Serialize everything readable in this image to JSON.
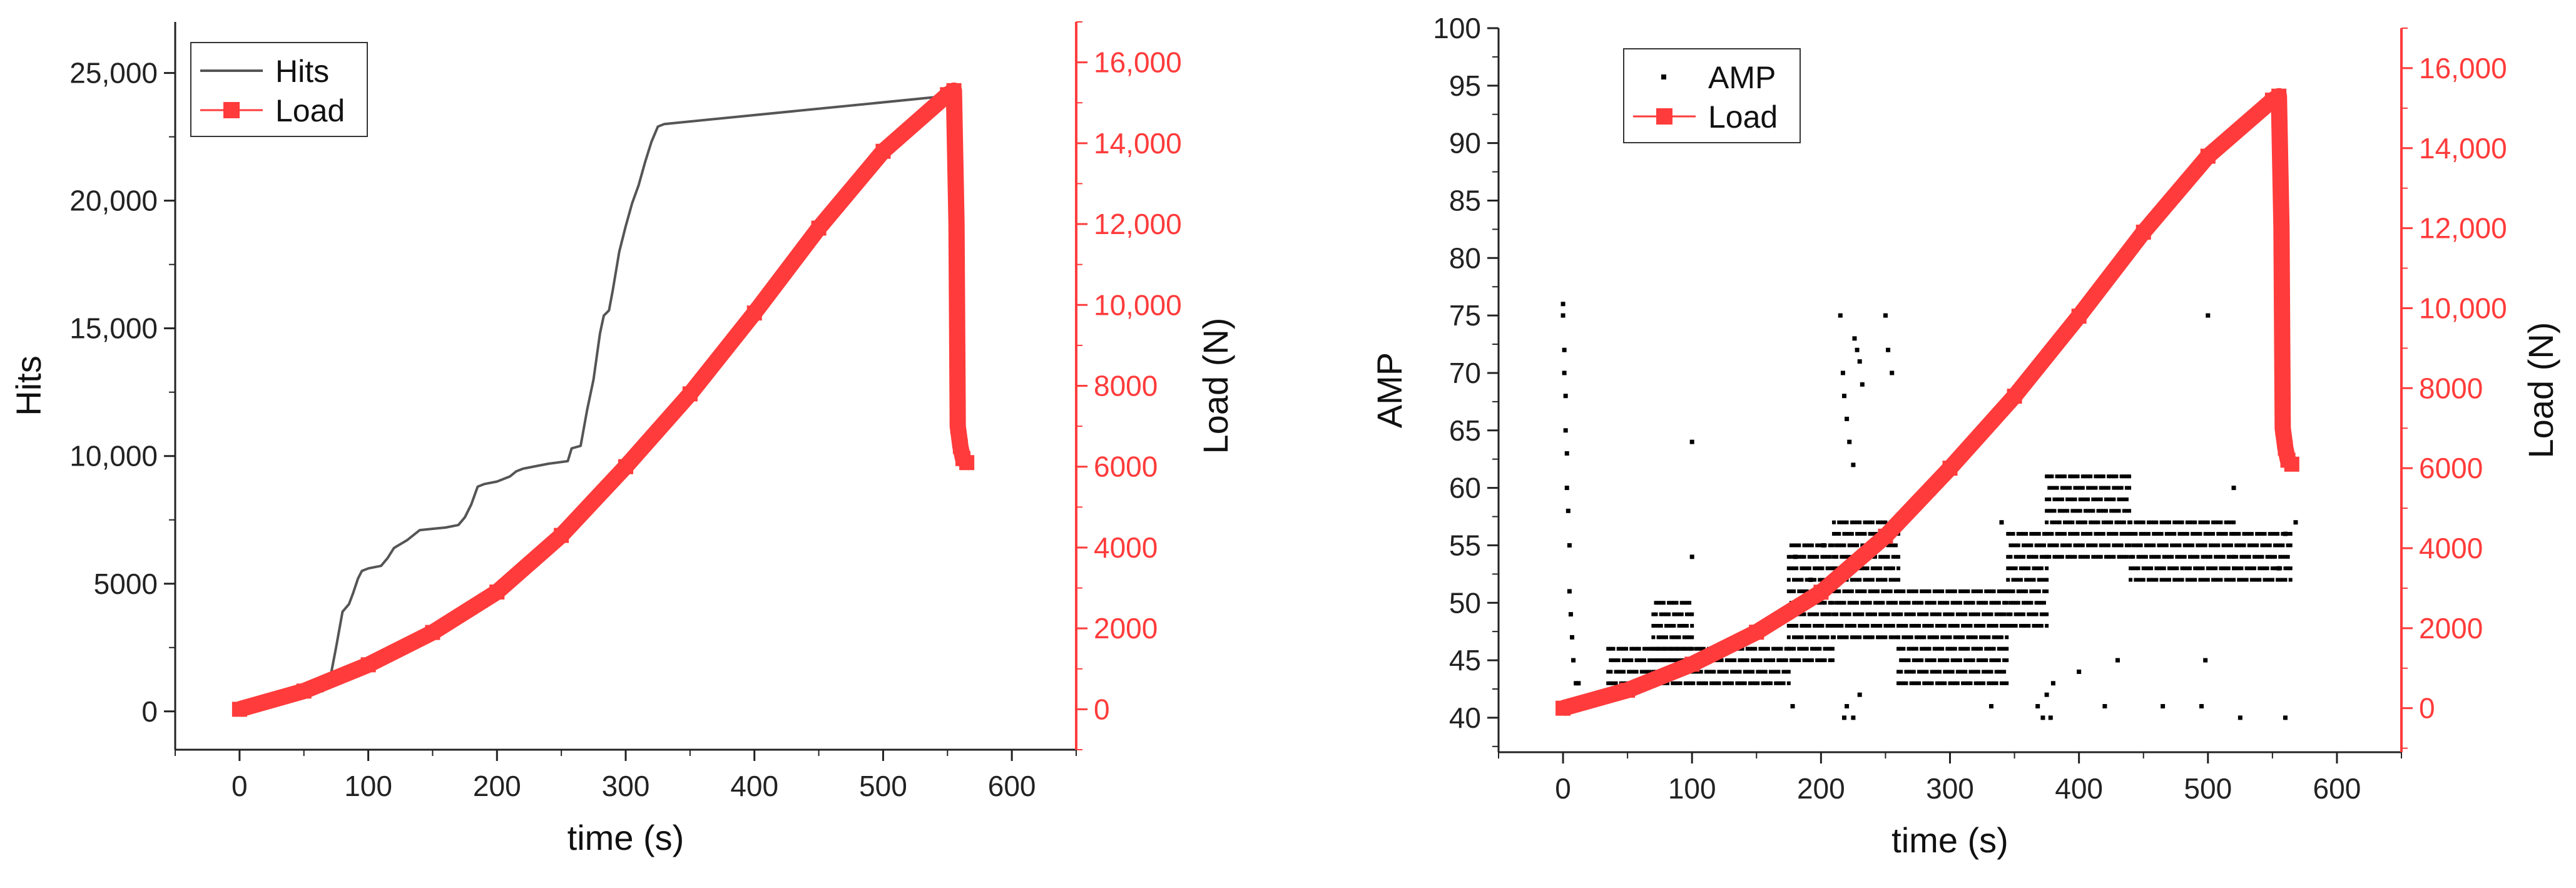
{
  "colors": {
    "hits": "#555555",
    "load": "#ff3b3b",
    "amp": "#000000",
    "axis": "#222222"
  },
  "chart_data": [
    {
      "type": "line",
      "title": "",
      "xlabel": "time (s)",
      "ylabel": "Hits",
      "ylabel_right": "Load (N)",
      "xlim": [
        -50,
        650
      ],
      "ylim": [
        -1500,
        27000
      ],
      "ylim_right": [
        -1000,
        17000
      ],
      "xticks": [
        0,
        100,
        200,
        300,
        400,
        500,
        600
      ],
      "xtick_labels": [
        "0",
        "100",
        "200",
        "300",
        "400",
        "500",
        "600"
      ],
      "yticks": [
        0,
        5000,
        10000,
        15000,
        20000,
        25000
      ],
      "ytick_labels": [
        "0",
        "5000",
        "10,000",
        "15,000",
        "20,000",
        "25,000"
      ],
      "yticks_right": [
        0,
        2000,
        4000,
        6000,
        8000,
        10000,
        12000,
        14000,
        16000
      ],
      "ytick_labels_right": [
        "0",
        "2000",
        "4000",
        "6000",
        "8000",
        "10,000",
        "12,000",
        "14,000",
        "16,000"
      ],
      "legend": [
        "Hits",
        "Load"
      ],
      "legend_position": "top-left",
      "series": [
        {
          "name": "Hits",
          "axis": "left",
          "x": [
            0,
            65,
            70,
            75,
            80,
            85,
            88,
            92,
            95,
            100,
            110,
            115,
            120,
            130,
            140,
            150,
            160,
            170,
            175,
            180,
            185,
            190,
            200,
            210,
            215,
            220,
            230,
            240,
            255,
            258,
            265,
            270,
            275,
            280,
            283,
            287,
            290,
            295,
            300,
            305,
            310,
            315,
            320,
            325,
            330,
            550,
            555
          ],
          "y": [
            0,
            800,
            1200,
            2500,
            3900,
            4200,
            4600,
            5200,
            5500,
            5600,
            5700,
            6000,
            6400,
            6700,
            7100,
            7150,
            7200,
            7300,
            7600,
            8100,
            8800,
            8900,
            9000,
            9200,
            9400,
            9500,
            9600,
            9700,
            9800,
            10300,
            10400,
            11800,
            13000,
            14800,
            15500,
            15700,
            16500,
            18000,
            19000,
            19900,
            20600,
            21500,
            22300,
            22900,
            23000,
            24100,
            24200
          ]
        },
        {
          "name": "Load",
          "axis": "right",
          "x": [
            0,
            50,
            100,
            150,
            200,
            250,
            300,
            350,
            400,
            450,
            500,
            550,
            555,
            557,
            558,
            560,
            562,
            565
          ],
          "y": [
            0,
            450,
            1100,
            1900,
            2900,
            4300,
            6000,
            7800,
            9800,
            11900,
            13800,
            15200,
            15300,
            12000,
            7000,
            6500,
            6200,
            6100
          ]
        }
      ]
    },
    {
      "type": "scatter",
      "title": "",
      "xlabel": "time (s)",
      "ylabel": "AMP",
      "ylabel_right": "Load (N)",
      "xlim": [
        -50,
        650
      ],
      "ylim": [
        37,
        100
      ],
      "ylim_right": [
        -1100,
        17000
      ],
      "xticks": [
        0,
        100,
        200,
        300,
        400,
        500,
        600
      ],
      "xtick_labels": [
        "0",
        "100",
        "200",
        "300",
        "400",
        "500",
        "600"
      ],
      "yticks": [
        40,
        45,
        50,
        55,
        60,
        65,
        70,
        75,
        80,
        85,
        90,
        95,
        100
      ],
      "ytick_labels": [
        "40",
        "45",
        "50",
        "55",
        "60",
        "65",
        "70",
        "75",
        "80",
        "85",
        "90",
        "95",
        "100"
      ],
      "yticks_right": [
        0,
        2000,
        4000,
        6000,
        8000,
        10000,
        12000,
        14000,
        16000
      ],
      "ytick_labels_right": [
        "0",
        "2000",
        "4000",
        "6000",
        "8000",
        "10,000",
        "12,000",
        "14,000",
        "16,000"
      ],
      "legend": [
        "AMP",
        "Load"
      ],
      "legend_position": "top-left",
      "series": [
        {
          "name": "AMP",
          "axis": "left",
          "x": [
            0,
            0,
            1,
            1,
            2,
            2,
            3,
            3,
            4,
            5,
            5,
            6,
            7,
            8,
            10,
            12,
            100,
            100,
            215,
            217,
            218,
            220,
            222,
            225,
            226,
            228,
            230,
            232,
            250,
            252,
            255,
            218,
            220,
            225,
            230,
            178,
            180,
            192,
            202,
            332,
            340,
            368,
            372,
            375,
            378,
            380,
            400,
            420,
            430,
            465,
            495,
            498,
            500,
            520,
            525,
            560,
            560,
            555,
            568
          ],
          "y": [
            76,
            75,
            72,
            70,
            68,
            65,
            63,
            60,
            58,
            55,
            51,
            49,
            47,
            45,
            43,
            43,
            64,
            54,
            75,
            70,
            68,
            66,
            64,
            62,
            73,
            72,
            71,
            69,
            75,
            72,
            70,
            40,
            41,
            40,
            42,
            41,
            54,
            52,
            55,
            41,
            57,
            41,
            40,
            42,
            40,
            43,
            44,
            41,
            45,
            41,
            41,
            45,
            75,
            60,
            40,
            40,
            56,
            53,
            57
          ],
          "bands": [
            {
              "x": [
                35,
                175
              ],
              "ymin": 43,
              "ymax": 46
            },
            {
              "x": [
                70,
                100
              ],
              "ymin": 44,
              "ymax": 50
            },
            {
              "x": [
                175,
                210
              ],
              "ymin": 45,
              "ymax": 55
            },
            {
              "x": [
                210,
                260
              ],
              "ymin": 47,
              "ymax": 57
            },
            {
              "x": [
                260,
                345
              ],
              "ymin": 43,
              "ymax": 51
            },
            {
              "x": [
                345,
                375
              ],
              "ymin": 48,
              "ymax": 56
            },
            {
              "x": [
                375,
                440
              ],
              "ymin": 54,
              "ymax": 61
            },
            {
              "x": [
                440,
                520
              ],
              "ymin": 52,
              "ymax": 57
            },
            {
              "x": [
                520,
                565
              ],
              "ymin": 52,
              "ymax": 56
            }
          ]
        },
        {
          "name": "Load",
          "axis": "right",
          "x": [
            0,
            50,
            100,
            150,
            200,
            250,
            300,
            350,
            400,
            450,
            500,
            550,
            555,
            557,
            558,
            560,
            562,
            565
          ],
          "y": [
            0,
            450,
            1100,
            1900,
            2900,
            4300,
            6000,
            7800,
            9800,
            11900,
            13800,
            15200,
            15300,
            12000,
            7000,
            6500,
            6200,
            6100
          ]
        }
      ]
    }
  ]
}
